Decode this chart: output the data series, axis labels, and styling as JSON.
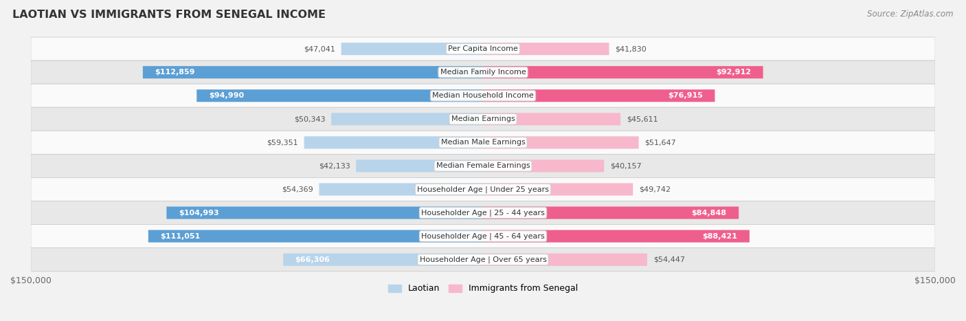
{
  "title": "LAOTIAN VS IMMIGRANTS FROM SENEGAL INCOME",
  "source": "Source: ZipAtlas.com",
  "categories": [
    "Per Capita Income",
    "Median Family Income",
    "Median Household Income",
    "Median Earnings",
    "Median Male Earnings",
    "Median Female Earnings",
    "Householder Age | Under 25 years",
    "Householder Age | 25 - 44 years",
    "Householder Age | 45 - 64 years",
    "Householder Age | Over 65 years"
  ],
  "laotian_values": [
    47041,
    112859,
    94990,
    50343,
    59351,
    42133,
    54369,
    104993,
    111051,
    66306
  ],
  "senegal_values": [
    41830,
    92912,
    76915,
    45611,
    51647,
    40157,
    49742,
    84848,
    88421,
    54447
  ],
  "laotian_labels": [
    "$47,041",
    "$112,859",
    "$94,990",
    "$50,343",
    "$59,351",
    "$42,133",
    "$54,369",
    "$104,993",
    "$111,051",
    "$66,306"
  ],
  "senegal_labels": [
    "$41,830",
    "$92,912",
    "$76,915",
    "$45,611",
    "$51,647",
    "$40,157",
    "$49,742",
    "$84,848",
    "$88,421",
    "$54,447"
  ],
  "max_value": 150000,
  "bar_height": 0.52,
  "laotian_color_light": "#b8d4eb",
  "laotian_color_dark": "#5b9fd4",
  "senegal_color_light": "#f7b8cc",
  "senegal_color_dark": "#ef5f8e",
  "large_threshold": 70000,
  "bg_color": "#f2f2f2",
  "row_bg_light": "#fafafa",
  "row_bg_dark": "#e8e8e8",
  "label_color_inside": "#ffffff",
  "label_color_outside": "#555555",
  "label_inside_threshold": 60000,
  "legend_laotian": "Laotian",
  "legend_senegal": "Immigrants from Senegal"
}
